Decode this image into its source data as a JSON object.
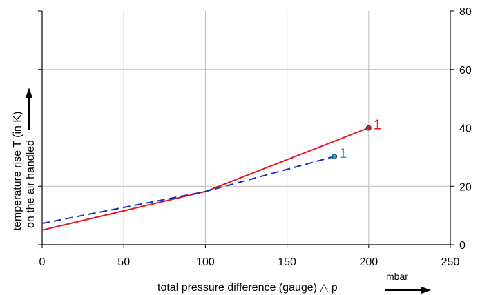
{
  "chart_data": {
    "type": "line",
    "xlabel": "total pressure difference (gauge)",
    "xlabel_symbol": "△ p",
    "x_unit": "mbar",
    "ylabel_line1": "temperature rise T (in K)",
    "ylabel_line2": "on the air handled",
    "xlim": [
      0,
      250
    ],
    "ylim": [
      0,
      80
    ],
    "x_ticks": [
      0,
      50,
      100,
      150,
      200,
      250
    ],
    "y_ticks_right": [
      0,
      20,
      40,
      60,
      80
    ],
    "grid": true,
    "series": [
      {
        "style": "solid",
        "color": "#e8141c",
        "x": [
          0,
          100,
          200
        ],
        "y": [
          5,
          18.2,
          40
        ],
        "end_label": "1"
      },
      {
        "style": "dashed",
        "color": "#1230c8",
        "x": [
          0,
          100,
          179
        ],
        "y": [
          7.3,
          18.2,
          30.2
        ],
        "end_label": "1",
        "end_label_color": "#1aa3d6"
      }
    ]
  }
}
